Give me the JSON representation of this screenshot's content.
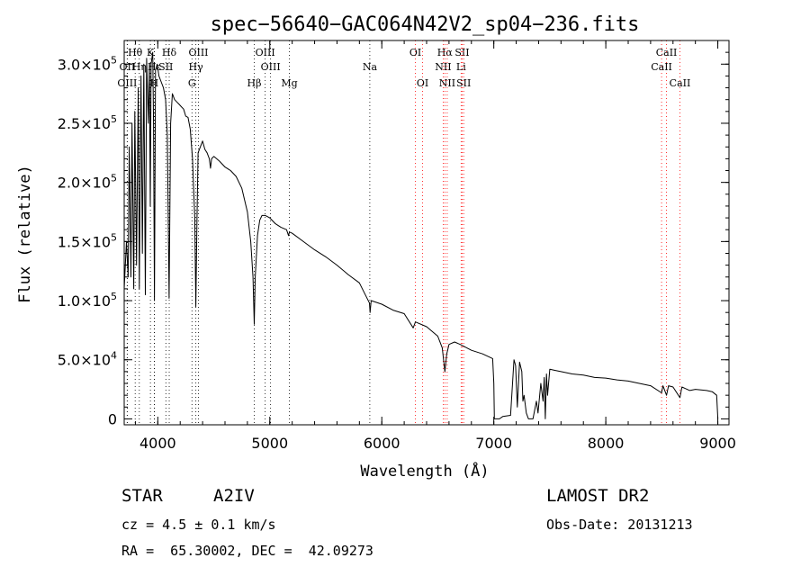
{
  "chart_data": {
    "type": "line",
    "title": "spec−56640−GAC064N42V2_sp04−236.fits",
    "xlabel": "Wavelength (Å)",
    "ylabel": "Flux (relative)",
    "xlim": [
      3700,
      9100
    ],
    "ylim": [
      -5000,
      320000.0
    ],
    "x_ticks": [
      {
        "value": 4000,
        "label": "4000"
      },
      {
        "value": 5000,
        "label": "5000"
      },
      {
        "value": 6000,
        "label": "6000"
      },
      {
        "value": 7000,
        "label": "7000"
      },
      {
        "value": 8000,
        "label": "8000"
      },
      {
        "value": 9000,
        "label": "9000"
      }
    ],
    "y_ticks": [
      {
        "value": 0,
        "mant": "0",
        "exp": ""
      },
      {
        "value": 50000,
        "mant": "5.0×10",
        "exp": "4"
      },
      {
        "value": 100000,
        "mant": "1.0×10",
        "exp": "5"
      },
      {
        "value": 150000,
        "mant": "1.5×10",
        "exp": "5"
      },
      {
        "value": 200000,
        "mant": "2.0×10",
        "exp": "5"
      },
      {
        "value": 250000,
        "mant": "2.5×10",
        "exp": "5"
      },
      {
        "value": 300000,
        "mant": "3.0×10",
        "exp": "5"
      }
    ],
    "series": [
      {
        "color": "#000000",
        "points": [
          [
            3700,
            110000
          ],
          [
            3720,
            150000
          ],
          [
            3735,
            120000
          ],
          [
            3745,
            230000
          ],
          [
            3760,
            120000
          ],
          [
            3770,
            250000
          ],
          [
            3785,
            110000
          ],
          [
            3795,
            260000
          ],
          [
            3810,
            130000
          ],
          [
            3825,
            280000
          ],
          [
            3835,
            110000
          ],
          [
            3850,
            290000
          ],
          [
            3862,
            140000
          ],
          [
            3875,
            300000
          ],
          [
            3889,
            105000
          ],
          [
            3900,
            305000
          ],
          [
            3915,
            250000
          ],
          [
            3925,
            300000
          ],
          [
            3933,
            180000
          ],
          [
            3940,
            300000
          ],
          [
            3955,
            310000
          ],
          [
            3962,
            250000
          ],
          [
            3970,
            100000
          ],
          [
            3980,
            295000
          ],
          [
            3995,
            300000
          ],
          [
            4010,
            290000
          ],
          [
            4030,
            285000
          ],
          [
            4050,
            280000
          ],
          [
            4070,
            270000
          ],
          [
            4085,
            240000
          ],
          [
            4101,
            102000
          ],
          [
            4115,
            250000
          ],
          [
            4130,
            275000
          ],
          [
            4150,
            270000
          ],
          [
            4170,
            268000
          ],
          [
            4190,
            266000
          ],
          [
            4210,
            264000
          ],
          [
            4230,
            262000
          ],
          [
            4250,
            256000
          ],
          [
            4270,
            255000
          ],
          [
            4290,
            245000
          ],
          [
            4310,
            220000
          ],
          [
            4330,
            170000
          ],
          [
            4340,
            95000
          ],
          [
            4350,
            170000
          ],
          [
            4360,
            225000
          ],
          [
            4380,
            230000
          ],
          [
            4400,
            235000
          ],
          [
            4420,
            228000
          ],
          [
            4440,
            225000
          ],
          [
            4460,
            220000
          ],
          [
            4471,
            212000
          ],
          [
            4480,
            220000
          ],
          [
            4500,
            222000
          ],
          [
            4550,
            218000
          ],
          [
            4600,
            213000
          ],
          [
            4650,
            210000
          ],
          [
            4700,
            205000
          ],
          [
            4750,
            195000
          ],
          [
            4800,
            175000
          ],
          [
            4830,
            150000
          ],
          [
            4850,
            120000
          ],
          [
            4861,
            80000
          ],
          [
            4870,
            120000
          ],
          [
            4890,
            155000
          ],
          [
            4910,
            168000
          ],
          [
            4930,
            172000
          ],
          [
            4960,
            172000
          ],
          [
            5000,
            170000
          ],
          [
            5050,
            165000
          ],
          [
            5100,
            162000
          ],
          [
            5150,
            160000
          ],
          [
            5167,
            155000
          ],
          [
            5175,
            158000
          ],
          [
            5200,
            157000
          ],
          [
            5300,
            150000
          ],
          [
            5400,
            143000
          ],
          [
            5500,
            137000
          ],
          [
            5600,
            130000
          ],
          [
            5700,
            122000
          ],
          [
            5800,
            115000
          ],
          [
            5890,
            98000
          ],
          [
            5895,
            90000
          ],
          [
            5905,
            100000
          ],
          [
            6000,
            97000
          ],
          [
            6100,
            92000
          ],
          [
            6200,
            89000
          ],
          [
            6280,
            77000
          ],
          [
            6300,
            82000
          ],
          [
            6400,
            78000
          ],
          [
            6500,
            70000
          ],
          [
            6540,
            60000
          ],
          [
            6563,
            40000
          ],
          [
            6580,
            55000
          ],
          [
            6600,
            63000
          ],
          [
            6650,
            65000
          ],
          [
            6700,
            63000
          ],
          [
            6800,
            58000
          ],
          [
            6900,
            55000
          ],
          [
            6990,
            51000
          ],
          [
            7000,
            30000
          ],
          [
            7005,
            0
          ],
          [
            7050,
            0
          ],
          [
            7080,
            2000
          ],
          [
            7150,
            3000
          ],
          [
            7180,
            50000
          ],
          [
            7195,
            45000
          ],
          [
            7210,
            10000
          ],
          [
            7230,
            48000
          ],
          [
            7250,
            40000
          ],
          [
            7260,
            15000
          ],
          [
            7270,
            20000
          ],
          [
            7290,
            5000
          ],
          [
            7310,
            0
          ],
          [
            7350,
            0
          ],
          [
            7380,
            15000
          ],
          [
            7395,
            5000
          ],
          [
            7420,
            30000
          ],
          [
            7440,
            15000
          ],
          [
            7450,
            35000
          ],
          [
            7460,
            0
          ],
          [
            7470,
            38000
          ],
          [
            7480,
            20000
          ],
          [
            7500,
            42000
          ],
          [
            7550,
            41000
          ],
          [
            7600,
            40000
          ],
          [
            7700,
            38000
          ],
          [
            7800,
            37000
          ],
          [
            7900,
            35000
          ],
          [
            8000,
            34500
          ],
          [
            8100,
            33000
          ],
          [
            8200,
            32000
          ],
          [
            8300,
            30000
          ],
          [
            8400,
            28000
          ],
          [
            8498,
            22000
          ],
          [
            8510,
            28000
          ],
          [
            8542,
            20000
          ],
          [
            8560,
            28000
          ],
          [
            8600,
            27000
          ],
          [
            8662,
            18000
          ],
          [
            8680,
            27000
          ],
          [
            8750,
            24000
          ],
          [
            8800,
            25000
          ],
          [
            8900,
            24000
          ],
          [
            8950,
            23000
          ],
          [
            8990,
            20000
          ],
          [
            9000,
            0
          ]
        ]
      }
    ],
    "line_markers": [
      {
        "label": "Hθ",
        "wavelength": 3798,
        "color": "#000000",
        "row": 0
      },
      {
        "label": "K",
        "wavelength": 3934,
        "color": "#000000",
        "row": 0
      },
      {
        "label": "Hδ",
        "wavelength": 4102,
        "color": "#000000",
        "row": 0
      },
      {
        "label": "OIII",
        "wavelength": 4363,
        "color": "#000000",
        "row": 0
      },
      {
        "label": "OIII",
        "wavelength": 4959,
        "color": "#000000",
        "row": 0
      },
      {
        "label": "OI",
        "wavelength": 6300,
        "color": "#ff0000",
        "row": 0
      },
      {
        "label": "Hα",
        "wavelength": 6563,
        "color": "#ff0000",
        "row": 0
      },
      {
        "label": "SII",
        "wavelength": 6717,
        "color": "#ff0000",
        "row": 0
      },
      {
        "label": "CaII",
        "wavelength": 8542,
        "color": "#ff0000",
        "row": 0
      },
      {
        "label": "OII",
        "wavelength": 3727,
        "color": "#000000",
        "row": 1
      },
      {
        "label": "Hη",
        "wavelength": 3835,
        "color": "#000000",
        "row": 1
      },
      {
        "label": "Hε",
        "wavelength": 3970,
        "color": "#000000",
        "row": 1
      },
      {
        "label": "SII",
        "wavelength": 4072,
        "color": "#000000",
        "row": 1
      },
      {
        "label": "Hγ",
        "wavelength": 4340,
        "color": "#000000",
        "row": 1
      },
      {
        "label": "OIII",
        "wavelength": 5007,
        "color": "#000000",
        "row": 1
      },
      {
        "label": "Na",
        "wavelength": 5893,
        "color": "#000000",
        "row": 1
      },
      {
        "label": "NII",
        "wavelength": 6548,
        "color": "#ff0000",
        "row": 1
      },
      {
        "label": "Li",
        "wavelength": 6708,
        "color": "#ff0000",
        "row": 1
      },
      {
        "label": "CaII",
        "wavelength": 8498,
        "color": "#ff0000",
        "row": 1
      },
      {
        "label": "OIII",
        "wavelength": 3727,
        "color": "#000000",
        "row": 2
      },
      {
        "label": "H",
        "wavelength": 3969,
        "color": "#000000",
        "row": 2
      },
      {
        "label": "G",
        "wavelength": 4305,
        "color": "#000000",
        "row": 2
      },
      {
        "label": "Hβ",
        "wavelength": 4861,
        "color": "#000000",
        "row": 2
      },
      {
        "label": "Mg",
        "wavelength": 5175,
        "color": "#000000",
        "row": 2
      },
      {
        "label": "OI",
        "wavelength": 6364,
        "color": "#ff0000",
        "row": 2
      },
      {
        "label": "NII",
        "wavelength": 6584,
        "color": "#ff0000",
        "row": 2
      },
      {
        "label": "SII",
        "wavelength": 6731,
        "color": "#ff0000",
        "row": 2
      },
      {
        "label": "CaII",
        "wavelength": 8662,
        "color": "#ff0000",
        "row": 2
      }
    ]
  },
  "info": {
    "object_class": "STAR",
    "subclass": "A2IV",
    "survey": "LAMOST DR2",
    "redshift": "cz = 4.5 ± 0.1 km/s",
    "obs_date": "Obs-Date: 20131213",
    "coords": "RA =  65.30002, DEC =  42.09273"
  }
}
